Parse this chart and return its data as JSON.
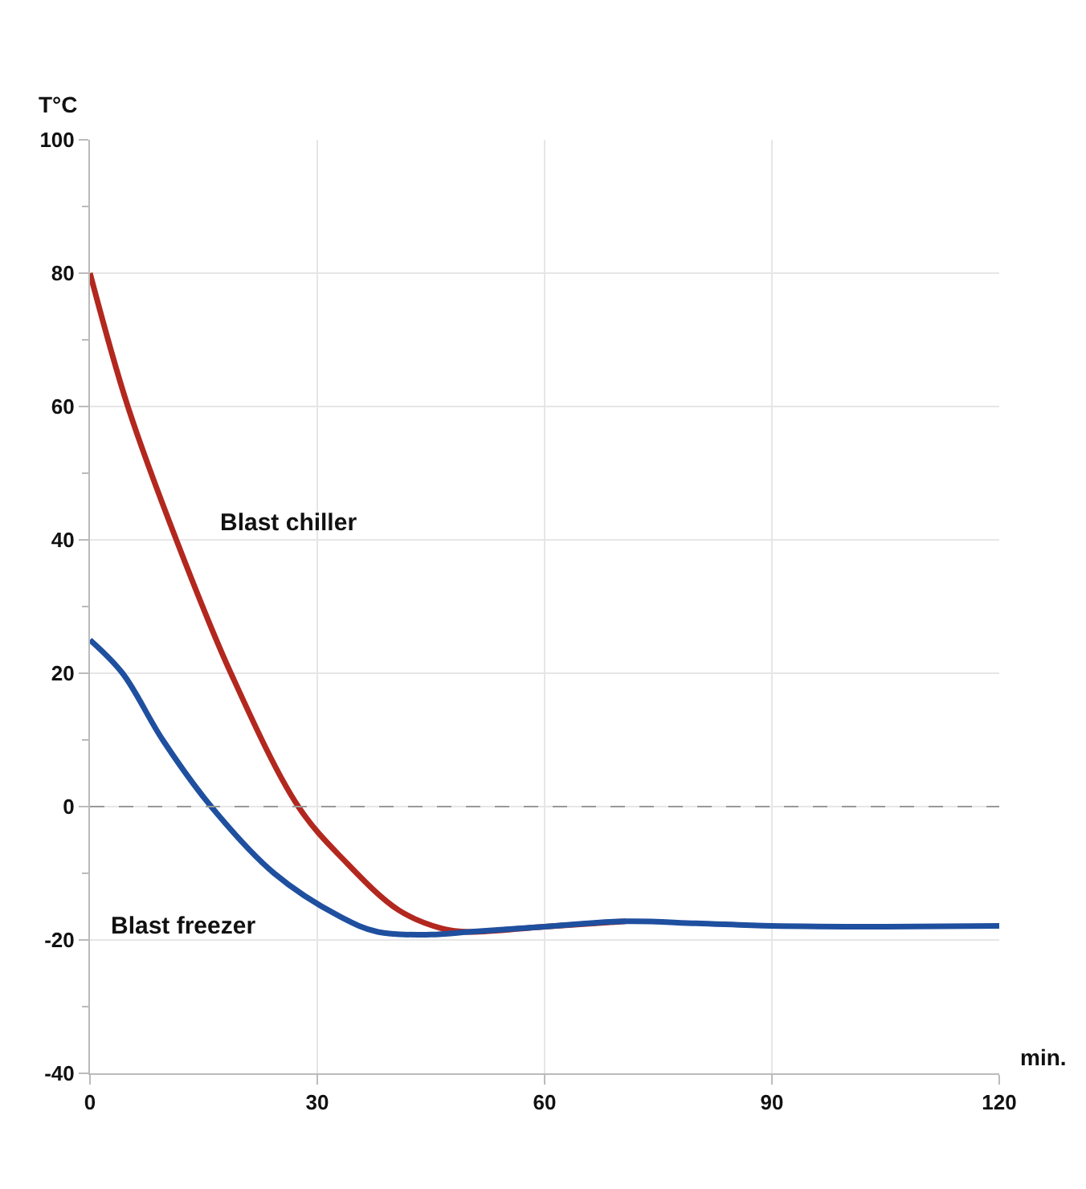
{
  "chart_data": {
    "type": "line",
    "xlabel": "min.",
    "ylabel": "T°C",
    "series": [
      {
        "name": "Blast chiller",
        "color": "#b2281f",
        "x": [
          0,
          5,
          11.4,
          18.6,
          27.5,
          33.5,
          40.7,
          46.5,
          50,
          60,
          70.7
        ],
        "values": [
          80,
          60,
          40,
          20,
          0,
          -8,
          -15.5,
          -18.3,
          -18.8,
          -18,
          -17.2
        ]
      },
      {
        "name": "Blast freezer",
        "color": "#1f4f9f",
        "x": [
          0,
          4.3,
          9.6,
          16,
          24.3,
          33,
          38,
          45,
          50,
          60,
          70.7,
          80,
          90,
          105,
          120
        ],
        "values": [
          25,
          20,
          10,
          0,
          -10,
          -16.5,
          -18.8,
          -19.2,
          -18.8,
          -18,
          -17.2,
          -17.5,
          -17.9,
          -18,
          -17.9
        ]
      }
    ],
    "xlim": [
      0,
      120
    ],
    "xticks": [
      0,
      30,
      60,
      90,
      120
    ],
    "ylim": [
      -40,
      100
    ],
    "yticks": [
      -40,
      {
        "value": -30,
        "label": null
      },
      -20,
      {
        "value": -10,
        "label": null
      },
      0,
      {
        "value": 10,
        "label": null
      },
      20,
      {
        "value": 30,
        "label": null
      },
      40,
      {
        "value": 50,
        "label": null
      },
      60,
      {
        "value": 70,
        "label": null
      },
      80,
      {
        "value": 90,
        "label": null
      },
      100
    ],
    "ref_lines": [
      {
        "axis": "y",
        "value": 0,
        "color": "#999999",
        "line_style": "dashed"
      }
    ],
    "grid": true,
    "legend": false,
    "marker": "none",
    "line_style": "solid"
  }
}
